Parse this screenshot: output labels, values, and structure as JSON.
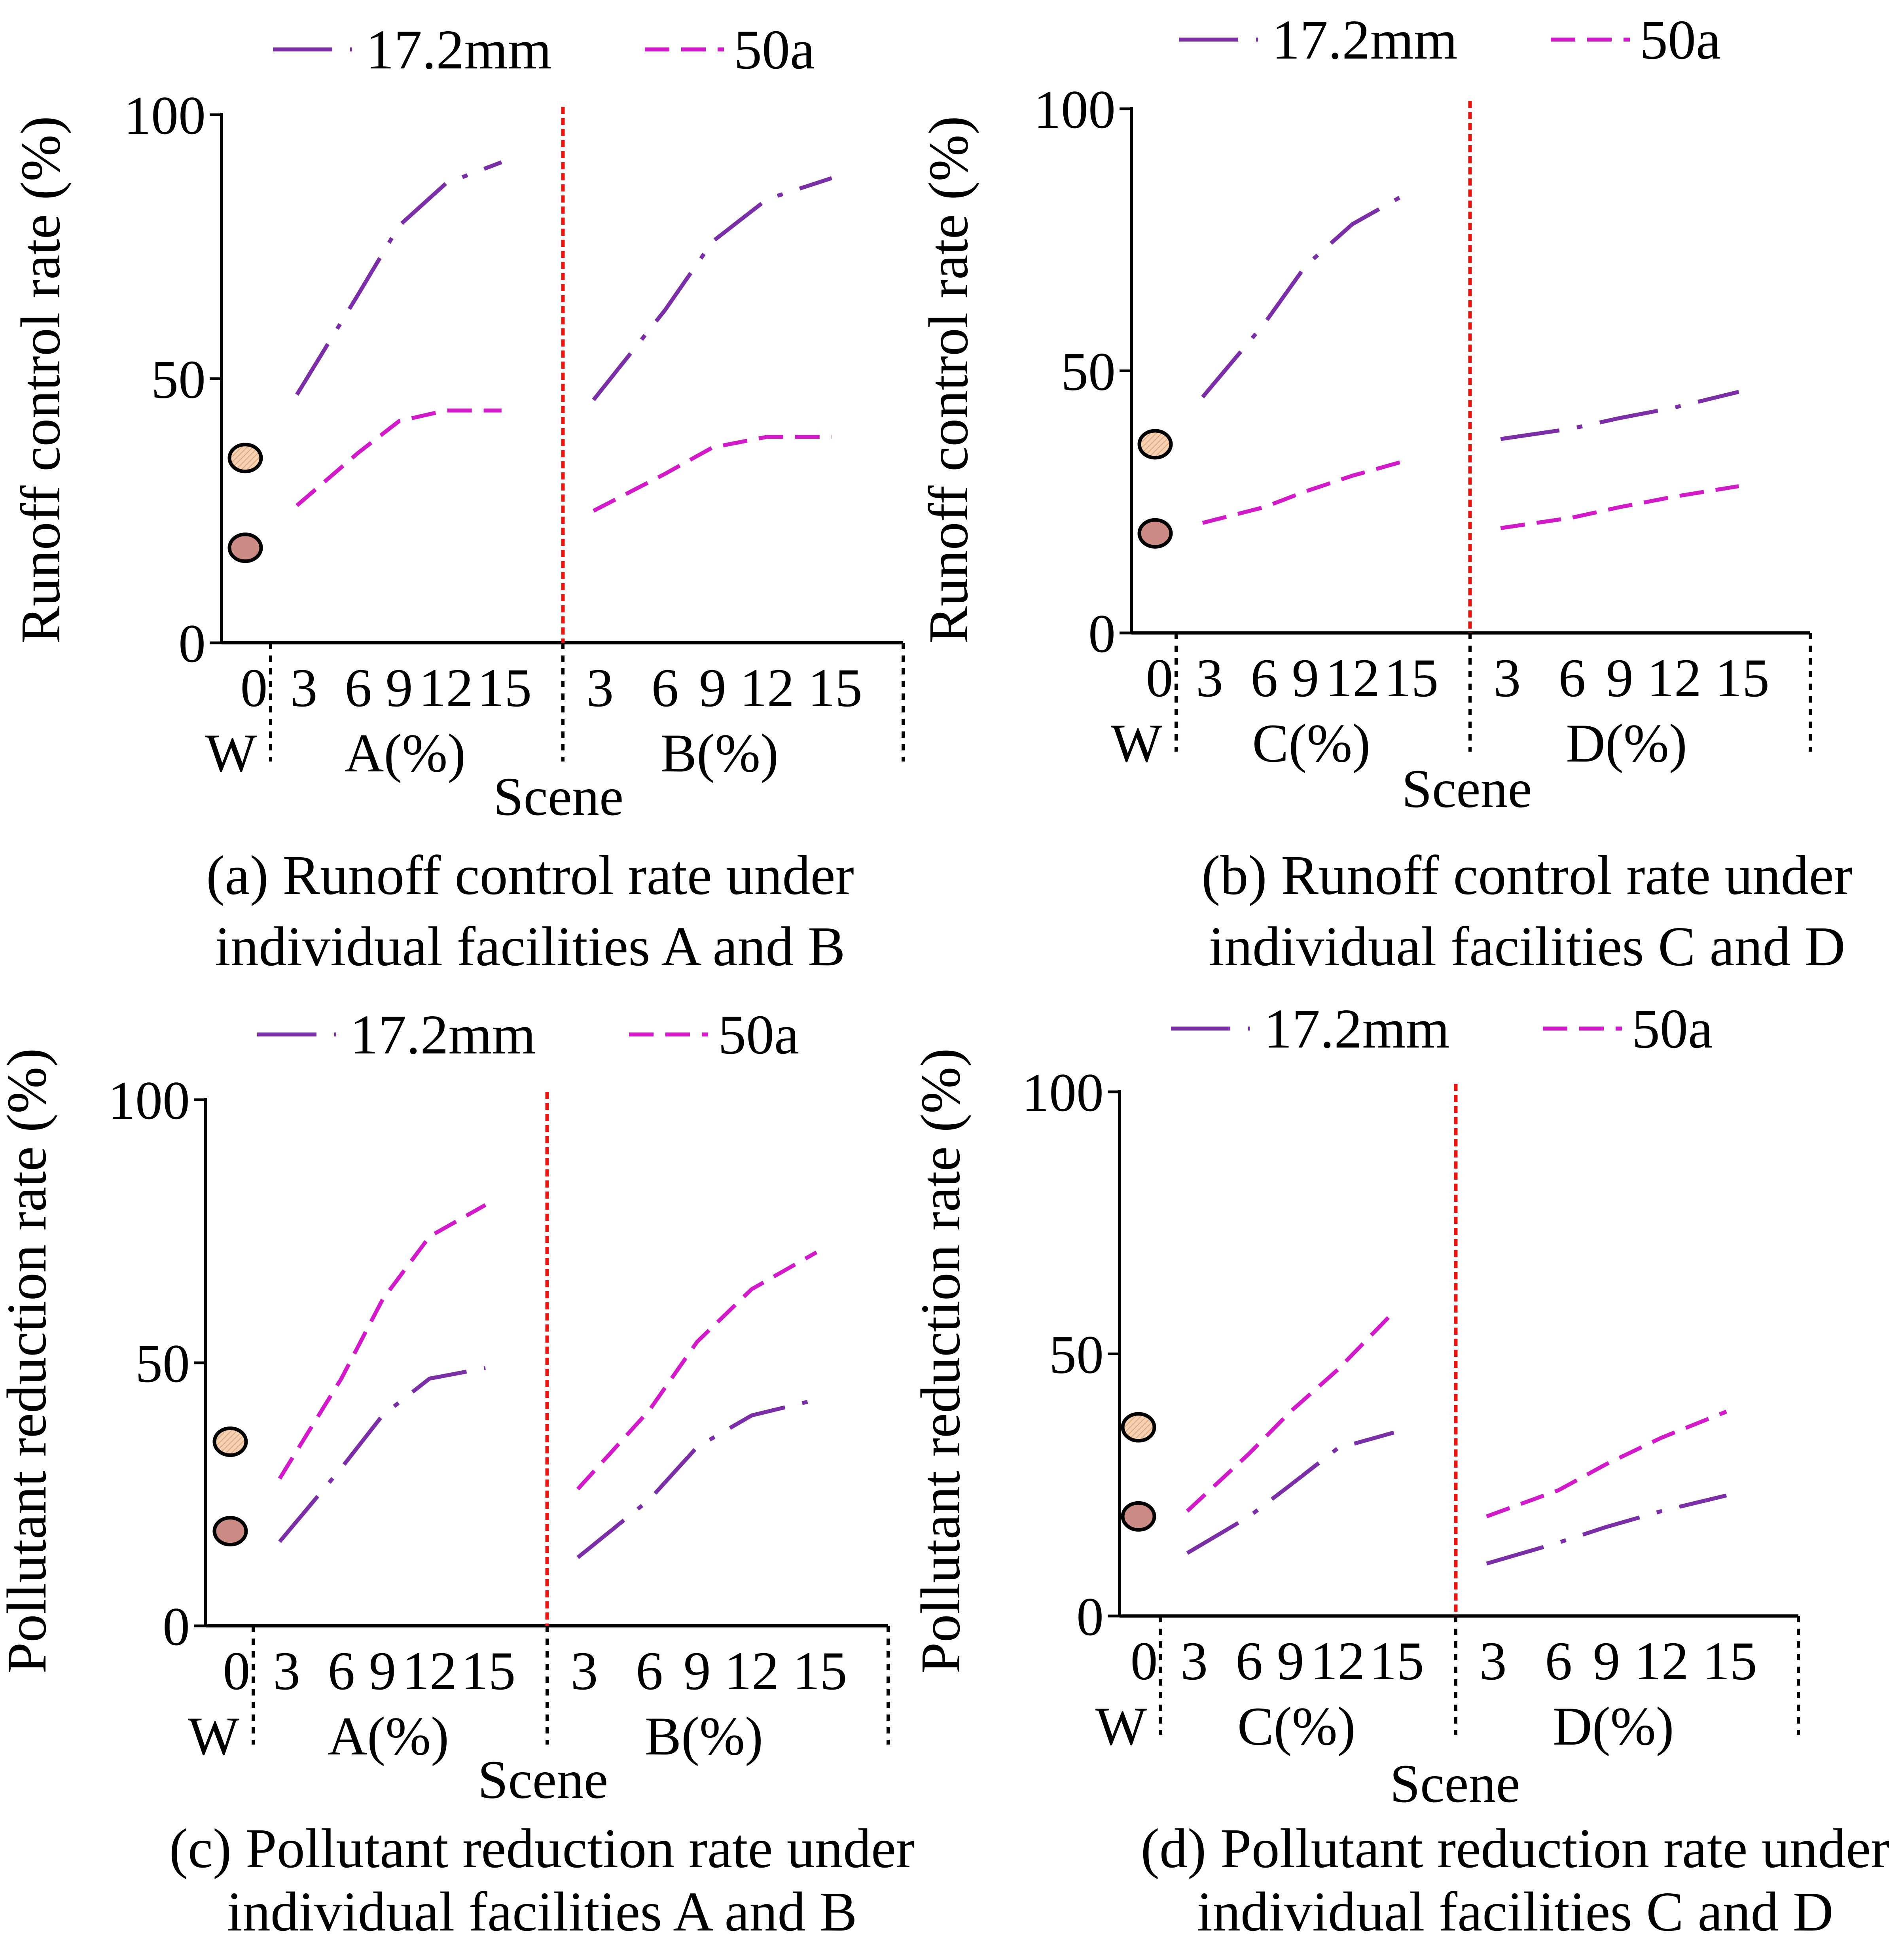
{
  "colors": {
    "series_17mm": "#7b2fa6",
    "series_50a": "#d11bc9",
    "divider": "#e8140f",
    "baseline_hatched": "#f6d2b2",
    "baseline_solid": "#cd8b86",
    "axis": "#000000"
  },
  "chart_data": [
    {
      "panel": "a",
      "type": "line",
      "caption_line1": "(a) Runoff control rate under",
      "caption_line2": "individual facilities A and B",
      "ylabel": "Runoff control rate (%)",
      "xlabel": "Scene",
      "ylim": [
        0,
        100
      ],
      "yticks": [
        "0",
        "50",
        "100"
      ],
      "legend": [
        "17.2mm",
        "50a"
      ],
      "baseline_label": "W",
      "baseline_tick": "0",
      "baseline_points": [
        35,
        18
      ],
      "groups": [
        {
          "name": "A(%)",
          "ticks": [
            "3",
            "6",
            "9",
            "12",
            "15"
          ],
          "series": [
            {
              "name": "17.2mm",
              "x": [
                3,
                6,
                9,
                12,
                15
              ],
              "values": [
                47,
                66,
                79,
                87,
                91
              ]
            },
            {
              "name": "50a",
              "x": [
                3,
                6,
                9,
                12,
                15
              ],
              "values": [
                26,
                36,
                42,
                44,
                44
              ]
            }
          ]
        },
        {
          "name": "B(%)",
          "ticks": [
            "3",
            "6",
            "9",
            "12",
            "15"
          ],
          "series": [
            {
              "name": "17.2mm",
              "x": [
                3,
                6,
                9,
                12,
                15
              ],
              "values": [
                46,
                63,
                76,
                84,
                88
              ]
            },
            {
              "name": "50a",
              "x": [
                3,
                6,
                9,
                12,
                15
              ],
              "values": [
                25,
                32,
                37,
                39,
                39
              ]
            }
          ]
        }
      ]
    },
    {
      "panel": "b",
      "type": "line",
      "caption_line1": "(b) Runoff control rate under",
      "caption_line2": "individual facilities C and D",
      "ylabel": "Runoff control rate (%)",
      "xlabel": "Scene",
      "ylim": [
        0,
        100
      ],
      "yticks": [
        "0",
        "50",
        "100"
      ],
      "legend": [
        "17.2mm",
        "50a"
      ],
      "baseline_label": "W",
      "baseline_tick": "0",
      "baseline_points": [
        36,
        19
      ],
      "groups": [
        {
          "name": "C(%)",
          "ticks": [
            "3",
            "6",
            "9",
            "12",
            "15"
          ],
          "series": [
            {
              "name": "17.2mm",
              "x": [
                3,
                6,
                9,
                12,
                15
              ],
              "values": [
                45,
                59,
                70,
                78,
                84
              ]
            },
            {
              "name": "50a",
              "x": [
                3,
                6,
                9,
                12,
                15
              ],
              "values": [
                21,
                24,
                27,
                30,
                33
              ]
            }
          ]
        },
        {
          "name": "D(%)",
          "ticks": [
            "3",
            "6",
            "9",
            "12",
            "15"
          ],
          "series": [
            {
              "name": "17.2mm",
              "x": [
                3,
                6,
                9,
                12,
                15
              ],
              "values": [
                37,
                39,
                41,
                43,
                46
              ]
            },
            {
              "name": "50a",
              "x": [
                3,
                6,
                9,
                12,
                15
              ],
              "values": [
                20,
                22,
                24,
                26,
                28
              ]
            }
          ]
        }
      ]
    },
    {
      "panel": "c",
      "type": "line",
      "caption_line1": "(c) Pollutant reduction rate under",
      "caption_line2": "individual facilities A and B",
      "ylabel": "Pollutant reduction rate (%)",
      "xlabel": "Scene",
      "ylim": [
        0,
        100
      ],
      "yticks": [
        "0",
        "50",
        "100"
      ],
      "legend": [
        "17.2mm",
        "50a"
      ],
      "baseline_label": "W",
      "baseline_tick": "0",
      "baseline_points": [
        35,
        18
      ],
      "groups": [
        {
          "name": "A(%)",
          "ticks": [
            "3",
            "6",
            "9",
            "12",
            "15"
          ],
          "series": [
            {
              "name": "17.2mm",
              "x": [
                3,
                6,
                9,
                12,
                15
              ],
              "values": [
                16,
                30,
                40,
                47,
                49
              ]
            },
            {
              "name": "50a",
              "x": [
                3,
                6,
                9,
                12,
                15
              ],
              "values": [
                28,
                47,
                62,
                74,
                80
              ]
            }
          ]
        },
        {
          "name": "B(%)",
          "ticks": [
            "3",
            "6",
            "9",
            "12",
            "15"
          ],
          "series": [
            {
              "name": "17.2mm",
              "x": [
                3,
                6,
                9,
                12,
                15
              ],
              "values": [
                13,
                24,
                34,
                40,
                43
              ]
            },
            {
              "name": "50a",
              "x": [
                3,
                6,
                9,
                12,
                15
              ],
              "values": [
                26,
                41,
                54,
                64,
                71
              ]
            }
          ]
        }
      ]
    },
    {
      "panel": "d",
      "type": "line",
      "caption_line1": "(d) Pollutant reduction rate under",
      "caption_line2": "individual facilities C and D",
      "ylabel": "Pollutant reduction rate (%)",
      "xlabel": "Scene",
      "ylim": [
        0,
        100
      ],
      "yticks": [
        "0",
        "50",
        "100"
      ],
      "legend": [
        "17.2mm",
        "50a"
      ],
      "baseline_label": "W",
      "baseline_tick": "0",
      "baseline_points": [
        36,
        19
      ],
      "groups": [
        {
          "name": "C(%)",
          "ticks": [
            "3",
            "6",
            "9",
            "12",
            "15"
          ],
          "series": [
            {
              "name": "17.2mm",
              "x": [
                3,
                6,
                9,
                12,
                15
              ],
              "values": [
                12,
                19,
                25,
                32,
                35
              ]
            },
            {
              "name": "50a",
              "x": [
                3,
                6,
                9,
                12,
                15
              ],
              "values": [
                20,
                31,
                39,
                47,
                58
              ]
            }
          ]
        },
        {
          "name": "D(%)",
          "ticks": [
            "3",
            "6",
            "9",
            "12",
            "15"
          ],
          "series": [
            {
              "name": "17.2mm",
              "x": [
                3,
                6,
                9,
                12,
                15
              ],
              "values": [
                10,
                14,
                17,
                20,
                23
              ]
            },
            {
              "name": "50a",
              "x": [
                3,
                6,
                9,
                12,
                15
              ],
              "values": [
                19,
                24,
                29,
                34,
                39
              ]
            }
          ]
        }
      ]
    }
  ]
}
